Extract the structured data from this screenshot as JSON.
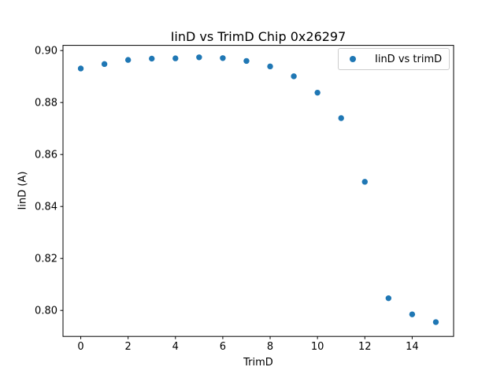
{
  "figure": {
    "title": "IinD vs TrimD Chip 0x26297",
    "xlabel": "TrimD",
    "ylabel": "IinD (A)",
    "legend": {
      "label": "IinD vs trimD"
    }
  },
  "chart_data": {
    "type": "scatter",
    "title": "IinD vs TrimD Chip 0x26297",
    "xlabel": "TrimD",
    "ylabel": "IinD (A)",
    "legend_entries": [
      "IinD vs trimD"
    ],
    "legend_position": "upper right",
    "grid": false,
    "marker_color": "#1f77b4",
    "x": [
      0,
      1,
      2,
      3,
      4,
      5,
      6,
      7,
      8,
      9,
      10,
      11,
      12,
      13,
      14,
      15
    ],
    "y": [
      0.8931,
      0.8948,
      0.8964,
      0.8969,
      0.897,
      0.8974,
      0.8971,
      0.896,
      0.8939,
      0.8901,
      0.8838,
      0.874,
      0.8495,
      0.8047,
      0.7985,
      0.7955
    ],
    "xlim": [
      -0.75,
      15.75
    ],
    "ylim": [
      0.79,
      0.902
    ],
    "x_ticks": [
      0,
      2,
      4,
      6,
      8,
      10,
      12,
      14
    ],
    "y_ticks": [
      0.8,
      0.82,
      0.84,
      0.86,
      0.88,
      0.9
    ]
  }
}
